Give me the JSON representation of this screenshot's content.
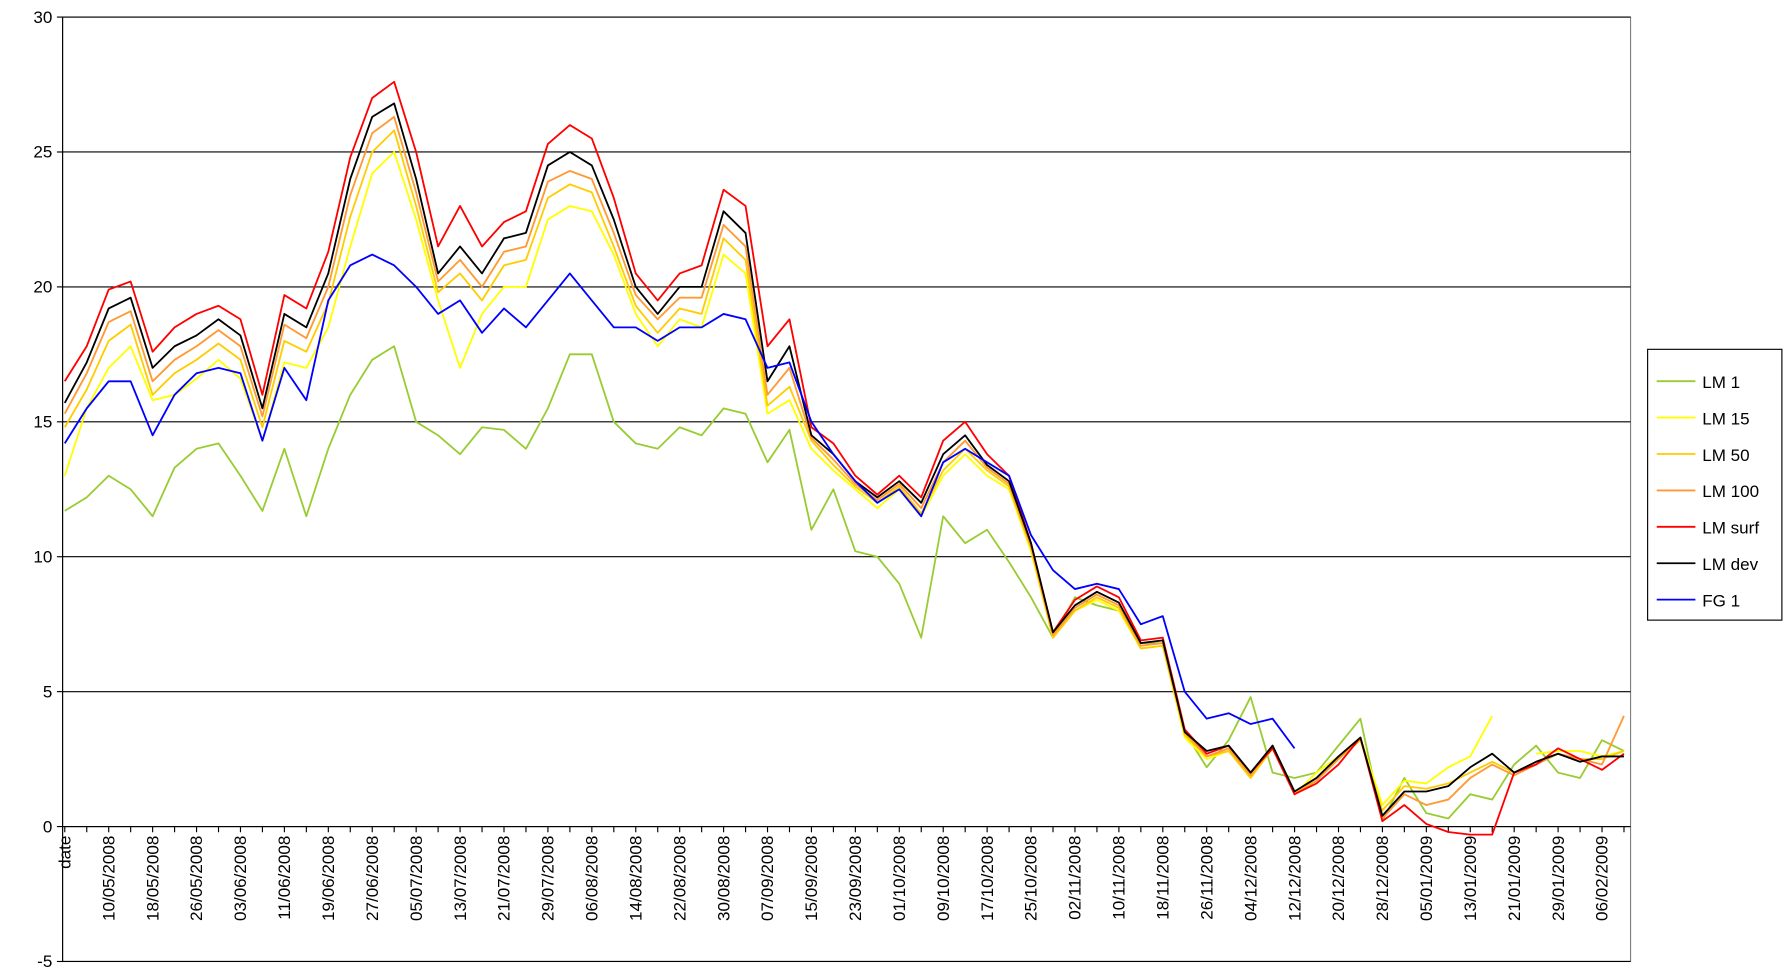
{
  "chart_data": {
    "type": "line",
    "categories": [
      "date",
      null,
      "10/05/2008",
      null,
      "18/05/2008",
      null,
      "26/05/2008",
      null,
      "03/06/2008",
      null,
      "11/06/2008",
      null,
      "19/06/2008",
      null,
      "27/06/2008",
      null,
      "05/07/2008",
      null,
      "13/07/2008",
      null,
      "21/07/2008",
      null,
      "29/07/2008",
      null,
      "06/08/2008",
      null,
      "14/08/2008",
      null,
      "22/08/2008",
      null,
      "30/08/2008",
      null,
      "07/09/2008",
      null,
      "15/09/2008",
      null,
      "23/09/2008",
      null,
      "01/10/2008",
      null,
      "09/10/2008",
      null,
      "17/10/2008",
      null,
      "25/10/2008",
      null,
      "02/11/2008",
      null,
      "10/11/2008",
      null,
      "18/11/2008",
      null,
      "26/11/2008",
      null,
      "04/12/2008",
      null,
      "12/12/2008",
      null,
      "20/12/2008",
      null,
      "28/12/2008",
      null,
      "05/01/2009",
      null,
      "13/01/2009",
      null,
      "21/01/2009",
      null,
      "29/01/2009",
      null,
      "06/02/2009",
      null
    ],
    "series": [
      {
        "name": "LM 1",
        "color": "#99cc33",
        "values": [
          11.7,
          12.2,
          13.0,
          12.5,
          11.5,
          13.3,
          14.0,
          14.2,
          13.0,
          11.7,
          14.0,
          11.5,
          14.0,
          16.0,
          17.3,
          17.8,
          15.0,
          14.5,
          13.8,
          14.8,
          14.7,
          14.0,
          15.5,
          17.5,
          17.5,
          15.0,
          14.2,
          14.0,
          14.8,
          14.5,
          15.5,
          15.3,
          13.5,
          14.7,
          11.0,
          12.5,
          10.2,
          10.0,
          9.0,
          7.0,
          11.5,
          10.5,
          11.0,
          9.8,
          8.5,
          7.0,
          8.5,
          8.2,
          8.0,
          6.8,
          6.8,
          3.5,
          2.2,
          3.2,
          4.8,
          2.0,
          1.8,
          2.0,
          3.0,
          4.0,
          0.2,
          1.8,
          0.5,
          0.3,
          1.2,
          1.0,
          2.3,
          3.0,
          2.0,
          1.8,
          3.2,
          2.8
        ]
      },
      {
        "name": "LM 15",
        "color": "#ffff00",
        "values": [
          13.0,
          15.5,
          17.0,
          17.8,
          15.8,
          16.0,
          16.6,
          17.3,
          16.6,
          14.3,
          17.2,
          17.0,
          18.5,
          21.5,
          24.2,
          25.0,
          22.5,
          19.5,
          17.0,
          19.0,
          20.0,
          20.0,
          22.5,
          23.0,
          22.8,
          21.2,
          19.0,
          17.8,
          18.8,
          18.5,
          21.2,
          20.5,
          15.3,
          15.8,
          14.0,
          13.2,
          12.5,
          11.8,
          12.5,
          11.5,
          13.0,
          13.8,
          13.0,
          12.5,
          10.2,
          7.0,
          8.0,
          8.4,
          8.0,
          6.6,
          6.7,
          3.3,
          2.5,
          2.8,
          1.8,
          3.0,
          1.2,
          2.0,
          2.6,
          3.3,
          0.8,
          1.7,
          1.6,
          2.2,
          2.6,
          4.1,
          null,
          2.7,
          2.8,
          2.8,
          2.6,
          2.8
        ]
      },
      {
        "name": "LM 50",
        "color": "#ffcc00",
        "values": [
          14.8,
          16.2,
          18.0,
          18.6,
          16.0,
          16.8,
          17.3,
          17.9,
          17.3,
          14.8,
          18.0,
          17.6,
          19.4,
          22.6,
          25.0,
          25.8,
          23.0,
          19.8,
          20.5,
          19.5,
          20.8,
          21.0,
          23.3,
          23.8,
          23.5,
          21.5,
          19.3,
          18.3,
          19.2,
          19.0,
          21.8,
          21.0,
          15.6,
          16.3,
          14.3,
          13.4,
          12.6,
          12.0,
          12.6,
          11.6,
          13.2,
          14.0,
          13.2,
          12.6,
          10.3,
          7.0,
          8.0,
          8.5,
          8.1,
          6.6,
          6.7,
          3.4,
          2.6,
          2.8,
          1.8,
          2.9,
          1.2,
          1.8,
          2.5,
          3.2,
          0.6,
          1.5,
          1.4,
          1.6,
          2.0,
          2.4,
          2.0,
          2.4,
          2.7,
          2.5,
          2.5,
          2.8
        ]
      },
      {
        "name": "LM 100",
        "color": "#ff9933",
        "values": [
          15.3,
          16.8,
          18.7,
          19.1,
          16.5,
          17.3,
          17.8,
          18.4,
          17.8,
          15.2,
          18.6,
          18.1,
          20.0,
          23.4,
          25.7,
          26.3,
          23.5,
          20.2,
          21.0,
          20.0,
          21.3,
          21.5,
          23.9,
          24.3,
          24.0,
          22.0,
          19.7,
          18.8,
          19.6,
          19.6,
          22.3,
          21.5,
          16.0,
          17.0,
          14.4,
          13.6,
          12.7,
          12.1,
          12.7,
          11.8,
          13.5,
          14.3,
          13.3,
          12.7,
          10.4,
          7.1,
          8.1,
          8.6,
          8.2,
          6.7,
          6.8,
          3.5,
          2.6,
          2.9,
          1.9,
          3.0,
          1.2,
          1.7,
          2.5,
          3.3,
          0.3,
          1.2,
          0.8,
          1.0,
          1.8,
          2.3,
          1.9,
          2.3,
          2.7,
          2.5,
          2.3,
          4.1
        ]
      },
      {
        "name": "LM surf",
        "color": "#ff0000",
        "values": [
          16.5,
          17.8,
          19.9,
          20.2,
          17.6,
          18.5,
          19.0,
          19.3,
          18.8,
          16.0,
          19.7,
          19.2,
          21.3,
          24.8,
          27.0,
          27.6,
          25.0,
          21.5,
          23.0,
          21.5,
          22.4,
          22.8,
          25.3,
          26.0,
          25.5,
          23.3,
          20.5,
          19.5,
          20.5,
          20.8,
          23.6,
          23.0,
          17.8,
          18.8,
          14.8,
          14.2,
          13.0,
          12.3,
          13.0,
          12.2,
          14.3,
          15.0,
          13.8,
          13.0,
          10.5,
          7.2,
          8.4,
          8.9,
          8.5,
          6.9,
          7.0,
          3.6,
          2.7,
          3.0,
          2.0,
          2.9,
          1.2,
          1.6,
          2.3,
          3.3,
          0.2,
          0.8,
          0.1,
          -0.2,
          -0.3,
          -0.3,
          2.0,
          2.3,
          2.9,
          2.5,
          2.1,
          2.7
        ]
      },
      {
        "name": "LM dev",
        "color": "#000000",
        "values": [
          15.7,
          17.2,
          19.2,
          19.6,
          17.0,
          17.8,
          18.2,
          18.8,
          18.2,
          15.5,
          19.0,
          18.5,
          20.5,
          24.0,
          26.3,
          26.8,
          24.0,
          20.5,
          21.5,
          20.5,
          21.8,
          22.0,
          24.5,
          25.0,
          24.5,
          22.5,
          20.0,
          19.0,
          20.0,
          20.0,
          22.8,
          22.0,
          16.5,
          17.8,
          14.5,
          13.8,
          12.8,
          12.2,
          12.8,
          12.0,
          13.8,
          14.5,
          13.4,
          12.8,
          10.5,
          7.2,
          8.2,
          8.7,
          8.3,
          6.8,
          6.9,
          3.5,
          2.8,
          3.0,
          2.0,
          3.0,
          1.3,
          1.8,
          2.6,
          3.3,
          0.4,
          1.3,
          1.3,
          1.5,
          2.2,
          2.7,
          2.0,
          2.4,
          2.7,
          2.4,
          2.6,
          2.6
        ]
      },
      {
        "name": "FG 1",
        "color": "#0000ff",
        "values": [
          14.2,
          15.5,
          16.5,
          16.5,
          14.5,
          16.0,
          16.8,
          17.0,
          16.8,
          14.3,
          17.0,
          15.8,
          19.5,
          20.8,
          21.2,
          20.8,
          20.0,
          19.0,
          19.5,
          18.3,
          19.2,
          18.5,
          19.5,
          20.5,
          19.5,
          18.5,
          18.5,
          18.0,
          18.5,
          18.5,
          19.0,
          18.8,
          17.0,
          17.2,
          15.0,
          13.8,
          12.8,
          12.0,
          12.5,
          11.5,
          13.5,
          14.0,
          13.5,
          13.0,
          10.8,
          9.5,
          8.8,
          9.0,
          8.8,
          7.5,
          7.8,
          5.0,
          4.0,
          4.2,
          3.8,
          4.0,
          2.9,
          null,
          null,
          null,
          null,
          null,
          null,
          null,
          null,
          null,
          null,
          null,
          null,
          null,
          null,
          null
        ]
      }
    ],
    "ylim": [
      -5,
      30
    ],
    "yticks": [
      -5,
      0,
      5,
      10,
      15,
      20,
      25,
      30
    ],
    "grid": true,
    "legend": "right"
  }
}
